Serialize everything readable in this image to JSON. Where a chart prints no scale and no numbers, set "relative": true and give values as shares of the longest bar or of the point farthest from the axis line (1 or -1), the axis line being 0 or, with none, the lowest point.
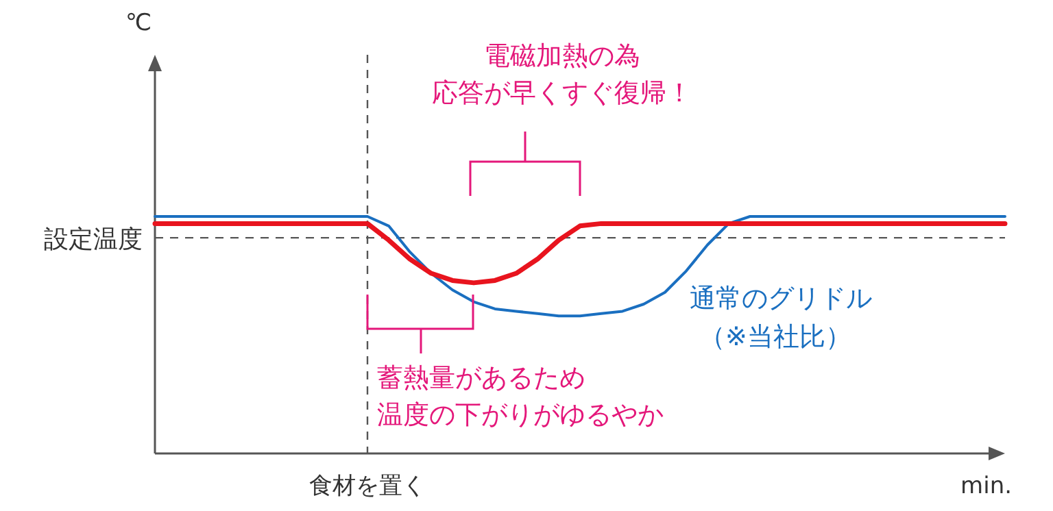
{
  "chart_data": {
    "type": "line",
    "relative": true,
    "xlabel": "min.",
    "categories": [
      null,
      null,
      null,
      null,
      null,
      null,
      null,
      null,
      null,
      null,
      null,
      null,
      null,
      null,
      null,
      null,
      null,
      null,
      null,
      null,
      null,
      null,
      null,
      null,
      null,
      null,
      null,
      null,
      null,
      null,
      null,
      null,
      null,
      null,
      null,
      null,
      null,
      null,
      null,
      null,
      null
    ],
    "series": [
      {
        "name": "通常のグリドル",
        "color": "#1a6fc0",
        "values": [
          1,
          1,
          1,
          1,
          1,
          1,
          1,
          1,
          1,
          1,
          1,
          0.96,
          0.85,
          0.76,
          0.69,
          0.64,
          0.61,
          0.6,
          0.59,
          0.58,
          0.58,
          0.59,
          0.6,
          0.63,
          0.68,
          0.77,
          0.88,
          0.97,
          1,
          1,
          1,
          1,
          1,
          1,
          1,
          1,
          1,
          1,
          1,
          1,
          1
        ]
      },
      {
        "color": "#e8141e",
        "values": [
          0.97,
          0.97,
          0.97,
          0.97,
          0.97,
          0.97,
          0.97,
          0.97,
          0.97,
          0.97,
          0.97,
          0.9,
          0.82,
          0.76,
          0.73,
          0.72,
          0.73,
          0.76,
          0.82,
          0.9,
          0.96,
          0.97,
          0.97,
          0.97,
          0.97,
          0.97,
          0.97,
          0.97,
          0.97,
          0.97,
          0.97,
          0.97,
          0.97,
          0.97,
          0.97,
          0.97,
          0.97,
          0.97,
          0.97,
          0.97,
          0.97
        ]
      }
    ],
    "ref_lines": [
      {
        "axis": "y",
        "value": 0.91,
        "label": "設定温度",
        "color": "#555555",
        "line_style": "dashed"
      }
    ],
    "annotations": [
      "電磁加熱の為",
      "応答が早くすぐ復帰！",
      "蓄熱量があるため",
      "温度の下がりがゆるやか",
      "（※当社比）",
      "食材を置く",
      "℃"
    ],
    "marker": "none",
    "line_style": "solid"
  }
}
